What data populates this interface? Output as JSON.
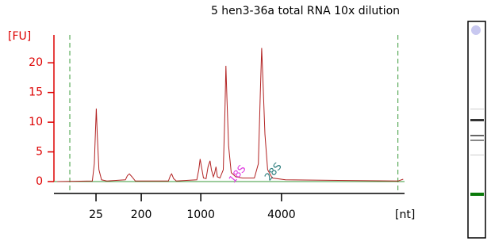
{
  "chart_data": {
    "type": "line",
    "title": "5 hen3-36a total RNA 10x dilution",
    "y_label": "[FU]",
    "x_label": "[nt]",
    "xlim": [
      17,
      70
    ],
    "ylim": [
      -2,
      24.7
    ],
    "yticks": [
      0,
      5,
      10,
      15,
      20
    ],
    "xticks": [
      {
        "value": 23.36,
        "label": "25"
      },
      {
        "value": 30.2,
        "label": "200"
      },
      {
        "value": 39.2,
        "label": "1000"
      },
      {
        "value": 51.4,
        "label": "4000"
      }
    ],
    "dashed_lines": [
      19.4,
      69.0
    ],
    "dashed_color": "#3a9a3a",
    "baseline": {
      "value": 0,
      "color": "#3a9a3a"
    },
    "x": [
      17.5,
      22.8,
      23.1,
      23.3,
      23.4,
      23.55,
      23.8,
      24.2,
      25,
      27.8,
      28.1,
      28.4,
      28.8,
      29.3,
      34.3,
      34.6,
      34.8,
      35.1,
      35.5,
      38.6,
      38.9,
      39.1,
      39.3,
      39.6,
      40.0,
      40.3,
      40.6,
      40.8,
      41.1,
      41.3,
      41.5,
      41.7,
      42.1,
      42.6,
      42.85,
      43.0,
      43.15,
      43.4,
      43.8,
      44.5,
      45.5,
      47.3,
      47.9,
      48.2,
      48.4,
      48.6,
      48.9,
      49.3,
      50,
      52,
      60,
      69,
      69.8
    ],
    "series": [
      {
        "color": "#b22222",
        "values": [
          0,
          0.1,
          3,
          9,
          12.3,
          8,
          2,
          0.3,
          0.1,
          0.3,
          1.0,
          1.3,
          0.8,
          0.1,
          0.1,
          1.0,
          1.3,
          0.5,
          0.1,
          0.3,
          2.0,
          3.8,
          2.5,
          0.6,
          0.5,
          2.5,
          3.5,
          2.0,
          0.8,
          1.5,
          2.5,
          0.8,
          0.6,
          2,
          12,
          19.5,
          14,
          6,
          1.5,
          0.8,
          0.6,
          0.6,
          3,
          15,
          22.5,
          17,
          8,
          2,
          0.6,
          0.3,
          0.2,
          0.1,
          0.4
        ]
      }
    ],
    "annotations": [
      {
        "text": "18S",
        "x": 44.8,
        "y": 1.2,
        "color": "#e040e0"
      },
      {
        "text": "28S",
        "x": 50.2,
        "y": 1.6,
        "color": "#2f7f7f"
      }
    ]
  }
}
